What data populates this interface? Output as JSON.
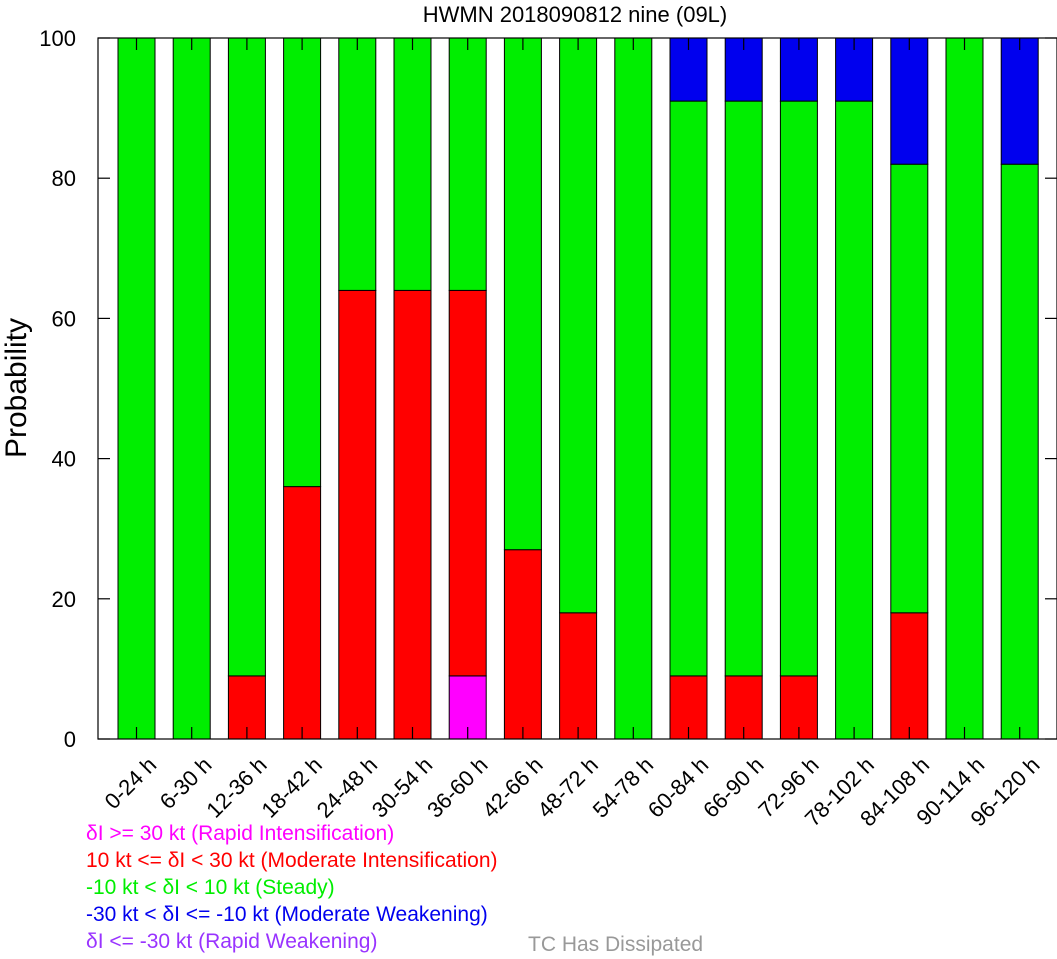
{
  "chart_data": {
    "type": "bar",
    "stacked": true,
    "title": "HWMN 2018090812 nine (09L)",
    "ylabel": "Probability",
    "xlabel": "",
    "ylim": [
      0,
      100
    ],
    "yticks": [
      0,
      20,
      40,
      60,
      80,
      100
    ],
    "grid": false,
    "categories": [
      "0-24 h",
      "6-30 h",
      "12-36 h",
      "18-42 h",
      "24-48 h",
      "30-54 h",
      "36-60 h",
      "42-66 h",
      "48-72 h",
      "54-78 h",
      "60-84 h",
      "66-90 h",
      "72-96 h",
      "78-102 h",
      "84-108 h",
      "90-114 h",
      "96-120 h"
    ],
    "series": [
      {
        "name": "δI >= 30 kt (Rapid Intensification)",
        "color": "#ff00ff",
        "values": [
          0,
          0,
          0,
          0,
          0,
          0,
          9,
          0,
          0,
          0,
          0,
          0,
          0,
          0,
          0,
          0,
          0
        ]
      },
      {
        "name": "10 kt <= δI < 30 kt (Moderate Intensification)",
        "color": "#ff0000",
        "values": [
          0,
          0,
          9,
          36,
          64,
          64,
          55,
          27,
          18,
          0,
          9,
          9,
          9,
          0,
          18,
          0,
          0
        ]
      },
      {
        "name": "-10 kt < δI < 10 kt (Steady)",
        "color": "#00ee00",
        "values": [
          100,
          100,
          91,
          64,
          36,
          36,
          36,
          73,
          82,
          100,
          82,
          82,
          82,
          91,
          64,
          100,
          82
        ]
      },
      {
        "name": "-30 kt < δI <= -10 kt (Moderate Weakening)",
        "color": "#0000ee",
        "values": [
          0,
          0,
          0,
          0,
          0,
          0,
          0,
          0,
          0,
          0,
          9,
          9,
          9,
          9,
          18,
          0,
          18
        ]
      },
      {
        "name": "δI <= -30 kt (Rapid Weakening)",
        "color": "#9933ff",
        "values": [
          0,
          0,
          0,
          0,
          0,
          0,
          0,
          0,
          0,
          0,
          0,
          0,
          0,
          0,
          0,
          0,
          0
        ]
      }
    ],
    "legend": [
      {
        "text": "δI >= 30 kt (Rapid Intensification)",
        "color": "#ff00ff"
      },
      {
        "text": "10 kt <= δI < 30 kt (Moderate Intensification)",
        "color": "#ff0000"
      },
      {
        "text": "-10 kt < δI < 10 kt (Steady)",
        "color": "#00ee00"
      },
      {
        "text": "-30 kt < δI <= -10 kt (Moderate Weakening)",
        "color": "#0000ee"
      },
      {
        "text": "δI <= -30 kt (Rapid Weakening)",
        "color": "#9933ff"
      }
    ],
    "dissipated_label": {
      "text": "TC Has Dissipated",
      "color": "#999999"
    }
  }
}
